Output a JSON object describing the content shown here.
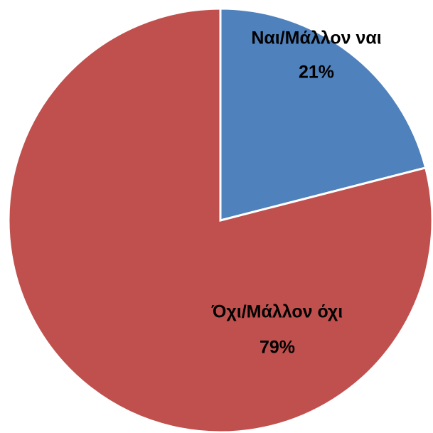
{
  "chart_data": {
    "type": "pie",
    "categories": [
      "Ναι/Μάλλον ναι",
      "Όχι/Μάλλον όχι"
    ],
    "values": [
      21,
      79
    ],
    "value_labels": [
      "21%",
      "79%"
    ],
    "colors": [
      "#4f81bd",
      "#c0504d"
    ]
  }
}
